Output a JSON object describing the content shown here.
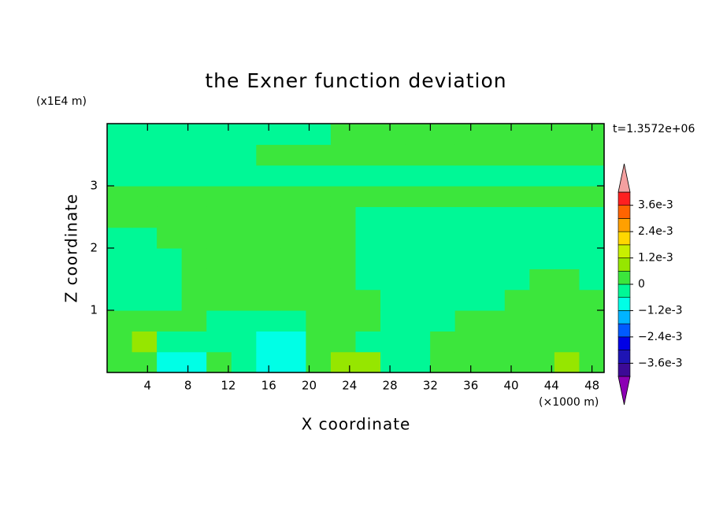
{
  "chart_data": {
    "type": "contour",
    "title": "the Exner function deviation",
    "time_label": "t=1.3572e+06",
    "xlabel": "X coordinate",
    "ylabel": "Z coordinate",
    "x_unit": "(×1000 m)",
    "y_unit": "(x1E4 m)",
    "xlim": [
      0,
      49.2
    ],
    "ylim": [
      0,
      4
    ],
    "xticks": [
      4,
      8,
      12,
      16,
      20,
      24,
      28,
      32,
      36,
      40,
      44,
      48
    ],
    "yticks": [
      1,
      2,
      3
    ],
    "x": [
      1.23,
      3.69,
      6.15,
      8.61,
      11.07,
      13.53,
      15.99,
      18.45,
      20.91,
      23.37,
      25.83,
      28.29,
      30.75,
      33.21,
      35.67,
      38.13,
      40.59,
      43.05,
      45.51,
      47.97
    ],
    "y": [
      0.167,
      0.5,
      0.833,
      1.167,
      1.5,
      1.833,
      2.167,
      2.5,
      2.833,
      3.167,
      3.5,
      3.833
    ],
    "z": [
      [
        0.0003,
        0.0003,
        -0.0009,
        -0.0009,
        0.0003,
        -0.0003,
        -0.0009,
        -0.0009,
        0.0003,
        0.0009,
        0.0009,
        -0.0003,
        -0.0003,
        0.0003,
        0.0003,
        0.0003,
        0.0003,
        0.0003,
        0.0009,
        0.0003
      ],
      [
        0.0003,
        0.0009,
        -0.0003,
        -0.0003,
        -0.0003,
        -0.0003,
        -0.0009,
        -0.0009,
        0.0003,
        0.0003,
        -0.0003,
        -0.0003,
        -0.0003,
        0.0003,
        0.0003,
        0.0003,
        0.0003,
        0.0003,
        0.0003,
        0.0003
      ],
      [
        0.0003,
        0.0003,
        0.0003,
        0.0003,
        -0.0003,
        -0.0003,
        -0.0003,
        -0.0003,
        0.0003,
        0.0003,
        0.0003,
        -0.0003,
        -0.0003,
        -0.0003,
        0.0003,
        0.0003,
        0.0003,
        0.0003,
        0.0003,
        0.0003
      ],
      [
        -0.0003,
        -0.0003,
        -0.0003,
        0.0003,
        0.0003,
        0.0003,
        0.0003,
        0.0003,
        0.0003,
        0.0003,
        0.0003,
        -0.0003,
        -0.0003,
        -0.0003,
        -0.0003,
        -0.0003,
        0.0003,
        0.0003,
        0.0003,
        0.0003
      ],
      [
        -0.0003,
        -0.0003,
        -0.0003,
        0.0003,
        0.0003,
        0.0003,
        0.0003,
        0.0003,
        0.0003,
        0.0003,
        -0.0003,
        -0.0003,
        -0.0003,
        -0.0003,
        -0.0003,
        -0.0003,
        -0.0003,
        0.0003,
        0.0003,
        -0.0003
      ],
      [
        -0.0003,
        -0.0003,
        -0.0003,
        0.0003,
        0.0003,
        0.0003,
        0.0003,
        0.0003,
        0.0003,
        0.0003,
        -0.0003,
        -0.0003,
        -0.0003,
        -0.0003,
        -0.0003,
        -0.0003,
        -0.0003,
        -0.0003,
        -0.0003,
        -0.0003
      ],
      [
        -0.0003,
        -0.0003,
        0.0003,
        0.0003,
        0.0003,
        0.0003,
        0.0003,
        0.0003,
        0.0003,
        0.0003,
        -0.0003,
        -0.0003,
        -0.0003,
        -0.0003,
        -0.0003,
        -0.0003,
        -0.0003,
        -0.0003,
        -0.0003,
        -0.0003
      ],
      [
        0.0003,
        0.0003,
        0.0003,
        0.0003,
        0.0003,
        0.0003,
        0.0003,
        0.0003,
        0.0003,
        0.0003,
        -0.0003,
        -0.0003,
        -0.0003,
        -0.0003,
        -0.0003,
        -0.0003,
        -0.0003,
        -0.0003,
        -0.0003,
        -0.0003
      ],
      [
        0.0003,
        0.0003,
        0.0003,
        0.0003,
        0.0003,
        0.0003,
        0.0003,
        0.0003,
        0.0003,
        0.0003,
        0.0003,
        0.0003,
        0.0003,
        0.0003,
        0.0003,
        0.0003,
        0.0003,
        0.0003,
        0.0003,
        0.0003
      ],
      [
        -0.0003,
        -0.0003,
        -0.0003,
        -0.0003,
        -0.0003,
        -0.0003,
        -0.0003,
        -0.0003,
        -0.0003,
        -0.0003,
        -0.0003,
        -0.0003,
        -0.0003,
        -0.0003,
        -0.0003,
        -0.0003,
        -0.0003,
        -0.0003,
        -0.0003,
        -0.0003
      ],
      [
        -0.0003,
        -0.0003,
        -0.0003,
        -0.0003,
        -0.0003,
        -0.0003,
        0.0003,
        0.0003,
        0.0003,
        0.0003,
        0.0003,
        0.0003,
        0.0003,
        0.0003,
        0.0003,
        0.0003,
        0.0003,
        0.0003,
        0.0003,
        0.0003
      ],
      [
        -0.0003,
        -0.0003,
        -0.0003,
        -0.0003,
        -0.0003,
        -0.0003,
        -0.0003,
        -0.0003,
        -0.0003,
        0.0003,
        0.0003,
        0.0003,
        0.0003,
        0.0003,
        0.0003,
        0.0003,
        0.0003,
        0.0003,
        0.0003,
        0.0003
      ]
    ],
    "levels": [
      -0.0042,
      -0.0036,
      -0.003,
      -0.0024,
      -0.0018,
      -0.0012,
      -0.0006,
      0,
      0.0006,
      0.0012,
      0.0018,
      0.0024,
      0.003,
      0.0036,
      0.0042
    ],
    "colors": [
      "#3c0a96",
      "#1e14b4",
      "#0000e6",
      "#005aff",
      "#00b4ff",
      "#00ffe6",
      "#00f896",
      "#3ce63c",
      "#96e600",
      "#c8f000",
      "#ffd700",
      "#ffa000",
      "#ff6400",
      "#ff2020"
    ],
    "under_color": "#8c00b4",
    "over_color": "#f4a0a0",
    "colorbar_ticks": [
      {
        "value": 0.0036,
        "label": "3.6e-3"
      },
      {
        "value": 0.0024,
        "label": "2.4e-3"
      },
      {
        "value": 0.0012,
        "label": "1.2e-3"
      },
      0,
      {
        "value": -0.0012,
        "label": "−1.2e-3"
      },
      {
        "value": -0.0024,
        "label": "−2.4e-3"
      },
      {
        "value": -0.0036,
        "label": "−3.6e-3"
      }
    ]
  }
}
